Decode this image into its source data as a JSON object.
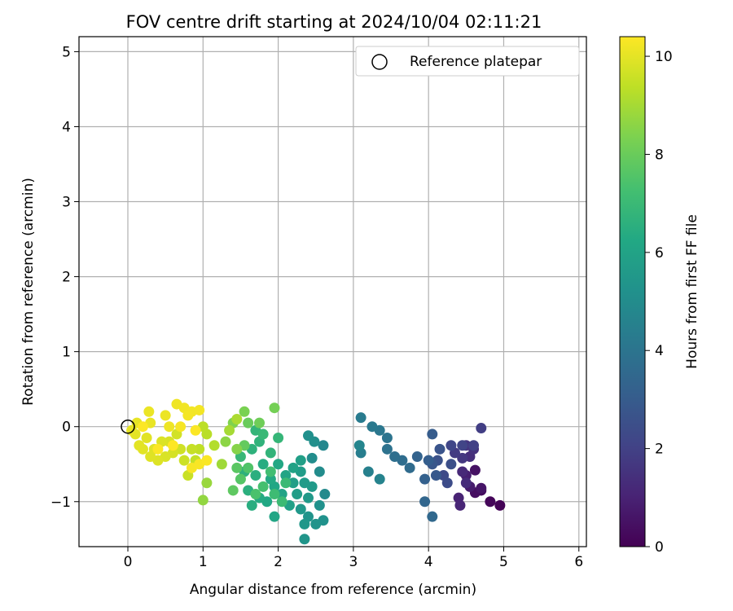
{
  "chart_data": {
    "type": "scatter",
    "title": "FOV centre drift starting at 2024/10/04 02:11:21",
    "xlabel": "Angular distance from reference (arcmin)",
    "ylabel": "Rotation from reference (arcmin)",
    "xlim": [
      -0.65,
      6.1
    ],
    "ylim": [
      -1.6,
      5.2
    ],
    "xticks": [
      0,
      1,
      2,
      3,
      4,
      5,
      6
    ],
    "yticks": [
      -1,
      0,
      1,
      2,
      3,
      4,
      5
    ],
    "grid": true,
    "legend": {
      "position": "upper-right",
      "entries": [
        "Reference platepar"
      ]
    },
    "reference_point": {
      "x": 0,
      "y": 0
    },
    "colorbar": {
      "label": "Hours from first FF file",
      "min": 0,
      "max": 10.4,
      "ticks": [
        0,
        2,
        4,
        6,
        8,
        10
      ],
      "colormap": "viridis"
    },
    "points": [
      {
        "x": 4.95,
        "y": -1.05,
        "h": 0.05
      },
      {
        "x": 4.82,
        "y": -1.0,
        "h": 0.15
      },
      {
        "x": 4.7,
        "y": -0.85,
        "h": 0.3
      },
      {
        "x": 4.62,
        "y": -0.88,
        "h": 0.4
      },
      {
        "x": 4.62,
        "y": -0.58,
        "h": 0.5
      },
      {
        "x": 4.7,
        "y": -0.82,
        "h": 0.6
      },
      {
        "x": 4.55,
        "y": -0.8,
        "h": 0.8
      },
      {
        "x": 4.5,
        "y": -0.65,
        "h": 0.9
      },
      {
        "x": 4.4,
        "y": -0.95,
        "h": 1.0
      },
      {
        "x": 4.42,
        "y": -1.05,
        "h": 1.1
      },
      {
        "x": 4.45,
        "y": -0.6,
        "h": 1.2
      },
      {
        "x": 4.5,
        "y": -0.75,
        "h": 1.3
      },
      {
        "x": 4.55,
        "y": -0.4,
        "h": 1.4
      },
      {
        "x": 4.6,
        "y": -0.3,
        "h": 1.5
      },
      {
        "x": 4.5,
        "y": -0.25,
        "h": 1.6
      },
      {
        "x": 4.45,
        "y": -0.42,
        "h": 1.7
      },
      {
        "x": 4.35,
        "y": -0.35,
        "h": 1.8
      },
      {
        "x": 4.7,
        "y": -0.02,
        "h": 1.9
      },
      {
        "x": 4.6,
        "y": -0.25,
        "h": 2.0
      },
      {
        "x": 4.45,
        "y": -0.25,
        "h": 2.1
      },
      {
        "x": 4.3,
        "y": -0.25,
        "h": 2.2
      },
      {
        "x": 4.2,
        "y": -0.65,
        "h": 2.3
      },
      {
        "x": 4.25,
        "y": -0.75,
        "h": 2.4
      },
      {
        "x": 4.3,
        "y": -0.5,
        "h": 2.5
      },
      {
        "x": 4.12,
        "y": -0.45,
        "h": 2.6
      },
      {
        "x": 4.15,
        "y": -0.3,
        "h": 2.7
      },
      {
        "x": 4.05,
        "y": -0.5,
        "h": 2.8
      },
      {
        "x": 4.1,
        "y": -0.65,
        "h": 2.9
      },
      {
        "x": 4.05,
        "y": -0.1,
        "h": 3.0
      },
      {
        "x": 4.0,
        "y": -0.45,
        "h": 3.1
      },
      {
        "x": 3.95,
        "y": -0.7,
        "h": 3.2
      },
      {
        "x": 3.85,
        "y": -0.4,
        "h": 3.3
      },
      {
        "x": 3.95,
        "y": -1.0,
        "h": 3.4
      },
      {
        "x": 4.05,
        "y": -1.2,
        "h": 3.5
      },
      {
        "x": 3.75,
        "y": -0.55,
        "h": 3.6
      },
      {
        "x": 3.65,
        "y": -0.45,
        "h": 3.7
      },
      {
        "x": 3.55,
        "y": -0.4,
        "h": 3.8
      },
      {
        "x": 3.45,
        "y": -0.3,
        "h": 3.9
      },
      {
        "x": 3.45,
        "y": -0.15,
        "h": 4.0
      },
      {
        "x": 3.35,
        "y": -0.05,
        "h": 4.1
      },
      {
        "x": 3.25,
        "y": 0.0,
        "h": 4.2
      },
      {
        "x": 3.1,
        "y": 0.12,
        "h": 4.3
      },
      {
        "x": 3.1,
        "y": -0.35,
        "h": 4.4
      },
      {
        "x": 3.2,
        "y": -0.6,
        "h": 4.5
      },
      {
        "x": 3.35,
        "y": -0.7,
        "h": 4.6
      },
      {
        "x": 3.08,
        "y": -0.25,
        "h": 4.7
      },
      {
        "x": 2.6,
        "y": -0.25,
        "h": 4.8
      },
      {
        "x": 2.62,
        "y": -0.9,
        "h": 4.9
      },
      {
        "x": 2.55,
        "y": -0.6,
        "h": 5.0
      },
      {
        "x": 2.45,
        "y": -0.42,
        "h": 5.05
      },
      {
        "x": 2.48,
        "y": -0.2,
        "h": 5.1
      },
      {
        "x": 2.4,
        "y": -0.12,
        "h": 5.15
      },
      {
        "x": 2.55,
        "y": -1.05,
        "h": 5.2
      },
      {
        "x": 2.6,
        "y": -1.25,
        "h": 5.25
      },
      {
        "x": 2.5,
        "y": -1.3,
        "h": 5.3
      },
      {
        "x": 2.4,
        "y": -1.2,
        "h": 5.35
      },
      {
        "x": 2.35,
        "y": -1.5,
        "h": 5.4
      },
      {
        "x": 2.35,
        "y": -1.3,
        "h": 5.45
      },
      {
        "x": 2.3,
        "y": -1.1,
        "h": 5.5
      },
      {
        "x": 2.4,
        "y": -0.95,
        "h": 5.55
      },
      {
        "x": 2.45,
        "y": -0.8,
        "h": 5.6
      },
      {
        "x": 2.35,
        "y": -0.75,
        "h": 5.65
      },
      {
        "x": 2.3,
        "y": -0.6,
        "h": 5.7
      },
      {
        "x": 2.25,
        "y": -0.9,
        "h": 5.75
      },
      {
        "x": 2.2,
        "y": -0.75,
        "h": 5.8
      },
      {
        "x": 2.3,
        "y": -0.45,
        "h": 5.85
      },
      {
        "x": 2.15,
        "y": -1.05,
        "h": 5.9
      },
      {
        "x": 2.2,
        "y": -0.55,
        "h": 5.95
      },
      {
        "x": 2.05,
        "y": -0.9,
        "h": 6.0
      },
      {
        "x": 2.1,
        "y": -0.65,
        "h": 6.05
      },
      {
        "x": 1.95,
        "y": -1.2,
        "h": 6.1
      },
      {
        "x": 1.95,
        "y": -0.8,
        "h": 6.15
      },
      {
        "x": 2.0,
        "y": -0.5,
        "h": 6.2
      },
      {
        "x": 1.85,
        "y": -1.0,
        "h": 6.25
      },
      {
        "x": 1.9,
        "y": -0.7,
        "h": 6.3
      },
      {
        "x": 1.75,
        "y": -0.95,
        "h": 6.35
      },
      {
        "x": 1.8,
        "y": -0.5,
        "h": 6.4
      },
      {
        "x": 1.65,
        "y": -1.05,
        "h": 6.45
      },
      {
        "x": 1.7,
        "y": -0.65,
        "h": 6.5
      },
      {
        "x": 1.6,
        "y": -0.85,
        "h": 6.55
      },
      {
        "x": 1.55,
        "y": -0.6,
        "h": 6.6
      },
      {
        "x": 1.65,
        "y": -0.3,
        "h": 6.65
      },
      {
        "x": 1.75,
        "y": -0.2,
        "h": 6.7
      },
      {
        "x": 1.9,
        "y": -0.35,
        "h": 6.75
      },
      {
        "x": 1.7,
        "y": -0.05,
        "h": 6.8
      },
      {
        "x": 2.0,
        "y": -0.15,
        "h": 6.85
      },
      {
        "x": 1.5,
        "y": -0.4,
        "h": 6.9
      },
      {
        "x": 1.8,
        "y": -0.1,
        "h": 6.95
      },
      {
        "x": 2.1,
        "y": -0.75,
        "h": 7.0
      },
      {
        "x": 2.05,
        "y": -1.0,
        "h": 7.05
      },
      {
        "x": 1.95,
        "y": -0.9,
        "h": 7.1
      },
      {
        "x": 1.9,
        "y": -0.6,
        "h": 7.2
      },
      {
        "x": 1.8,
        "y": -0.8,
        "h": 7.3
      },
      {
        "x": 1.7,
        "y": -0.9,
        "h": 7.4
      },
      {
        "x": 1.6,
        "y": -0.55,
        "h": 7.5
      },
      {
        "x": 1.5,
        "y": -0.7,
        "h": 7.6
      },
      {
        "x": 1.45,
        "y": -0.55,
        "h": 7.7
      },
      {
        "x": 1.4,
        "y": -0.85,
        "h": 7.8
      },
      {
        "x": 1.55,
        "y": -0.25,
        "h": 7.9
      },
      {
        "x": 1.6,
        "y": 0.05,
        "h": 8.0
      },
      {
        "x": 1.75,
        "y": 0.05,
        "h": 8.1
      },
      {
        "x": 1.95,
        "y": 0.25,
        "h": 8.2
      },
      {
        "x": 1.55,
        "y": 0.2,
        "h": 8.3
      },
      {
        "x": 1.4,
        "y": 0.05,
        "h": 8.4
      },
      {
        "x": 1.45,
        "y": -0.3,
        "h": 8.5
      },
      {
        "x": 1.3,
        "y": -0.2,
        "h": 8.6
      },
      {
        "x": 1.0,
        "y": -0.98,
        "h": 8.7
      },
      {
        "x": 1.05,
        "y": -0.75,
        "h": 8.8
      },
      {
        "x": 1.25,
        "y": -0.5,
        "h": 8.9
      },
      {
        "x": 1.35,
        "y": -0.05,
        "h": 9.0
      },
      {
        "x": 1.45,
        "y": 0.1,
        "h": 9.1
      },
      {
        "x": 1.15,
        "y": -0.25,
        "h": 9.2
      },
      {
        "x": 1.05,
        "y": -0.1,
        "h": 9.3
      },
      {
        "x": 1.0,
        "y": 0.0,
        "h": 9.35
      },
      {
        "x": 0.95,
        "y": -0.3,
        "h": 9.4
      },
      {
        "x": 0.9,
        "y": -0.45,
        "h": 9.45
      },
      {
        "x": 0.85,
        "y": -0.3,
        "h": 9.5
      },
      {
        "x": 0.8,
        "y": -0.65,
        "h": 9.55
      },
      {
        "x": 0.75,
        "y": -0.45,
        "h": 9.6
      },
      {
        "x": 0.7,
        "y": -0.3,
        "h": 9.65
      },
      {
        "x": 0.65,
        "y": -0.1,
        "h": 9.7
      },
      {
        "x": 0.6,
        "y": -0.35,
        "h": 9.75
      },
      {
        "x": 0.55,
        "y": -0.2,
        "h": 9.8
      },
      {
        "x": 0.5,
        "y": -0.4,
        "h": 9.82
      },
      {
        "x": 0.45,
        "y": -0.2,
        "h": 9.85
      },
      {
        "x": 0.4,
        "y": -0.45,
        "h": 9.88
      },
      {
        "x": 0.35,
        "y": -0.3,
        "h": 9.9
      },
      {
        "x": 0.3,
        "y": -0.4,
        "h": 9.92
      },
      {
        "x": 0.25,
        "y": -0.15,
        "h": 9.94
      },
      {
        "x": 0.2,
        "y": -0.3,
        "h": 9.96
      },
      {
        "x": 0.15,
        "y": -0.25,
        "h": 9.98
      },
      {
        "x": 0.1,
        "y": -0.1,
        "h": 10.0
      },
      {
        "x": 0.05,
        "y": -0.05,
        "h": 10.02
      },
      {
        "x": 0.12,
        "y": 0.05,
        "h": 10.05
      },
      {
        "x": 0.3,
        "y": 0.05,
        "h": 10.08
      },
      {
        "x": 0.28,
        "y": 0.2,
        "h": 10.1
      },
      {
        "x": 0.5,
        "y": 0.15,
        "h": 10.12
      },
      {
        "x": 0.55,
        "y": 0.0,
        "h": 10.15
      },
      {
        "x": 0.65,
        "y": 0.3,
        "h": 10.18
      },
      {
        "x": 0.75,
        "y": 0.25,
        "h": 10.2
      },
      {
        "x": 0.85,
        "y": 0.2,
        "h": 10.22
      },
      {
        "x": 0.95,
        "y": 0.22,
        "h": 10.24
      },
      {
        "x": 0.8,
        "y": 0.15,
        "h": 10.26
      },
      {
        "x": 0.7,
        "y": 0.0,
        "h": 10.28
      },
      {
        "x": 0.85,
        "y": -0.55,
        "h": 10.3
      },
      {
        "x": 0.95,
        "y": -0.5,
        "h": 10.32
      },
      {
        "x": 1.05,
        "y": -0.45,
        "h": 10.34
      },
      {
        "x": 0.9,
        "y": -0.05,
        "h": 10.36
      },
      {
        "x": 0.2,
        "y": 0.0,
        "h": 10.38
      },
      {
        "x": 0.4,
        "y": -0.3,
        "h": 10.39
      },
      {
        "x": 0.6,
        "y": -0.25,
        "h": 10.4
      }
    ]
  }
}
